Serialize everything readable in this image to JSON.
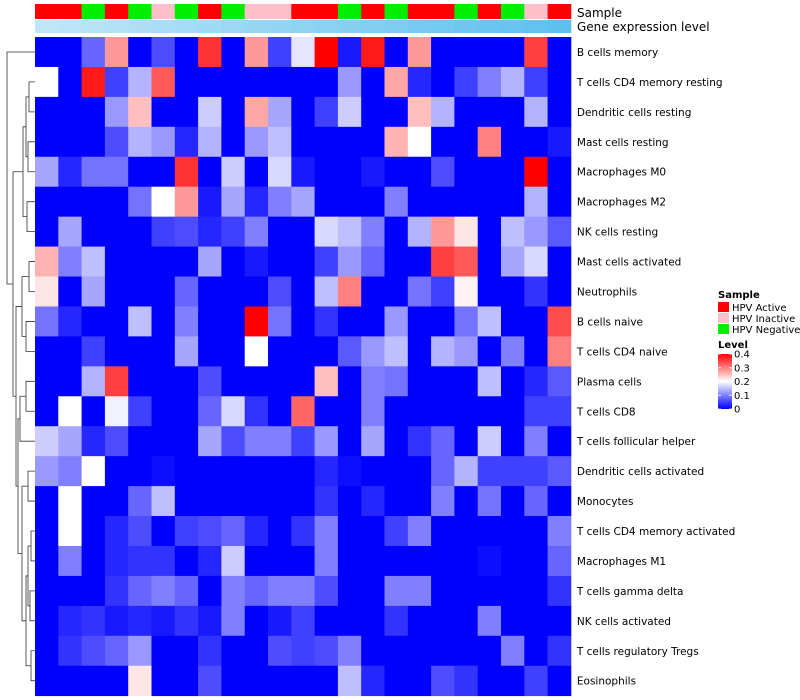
{
  "chart_data": {
    "type": "heatmap",
    "annotations": {
      "sample_label": "Sample",
      "level_label": "Gene expression level"
    },
    "rows": [
      "B cells memory",
      "T cells CD4 memory resting",
      "Dendritic cells resting",
      "Mast cells resting",
      "Macrophages M0",
      "Macrophages M2",
      "NK cells resting",
      "Mast cells activated",
      "Neutrophils",
      "B cells naive",
      "T cells CD4 naive",
      "Plasma cells",
      "T cells CD8",
      "T cells follicular helper",
      "Dendritic cells activated",
      "Monocytes",
      "T cells CD4 memory activated",
      "Macrophages M1",
      "T cells gamma delta",
      "NK cells activated",
      "T cells regulatory  Tregs",
      "Eosinophils"
    ],
    "samples": [
      "HPV Active",
      "HPV Active",
      "HPV Negative",
      "HPV Active",
      "HPV Negative",
      "HPV Inactive",
      "HPV Negative",
      "HPV Active",
      "HPV Negative",
      "HPV Inactive",
      "HPV Inactive",
      "HPV Active",
      "HPV Active",
      "HPV Negative",
      "HPV Active",
      "HPV Negative",
      "HPV Active",
      "HPV Active",
      "HPV Negative",
      "HPV Active",
      "HPV Negative",
      "HPV Inactive",
      "HPV Active"
    ],
    "expression_level": [
      0.0,
      0.05,
      0.09,
      0.14,
      0.18,
      0.23,
      0.27,
      0.32,
      0.36,
      0.41,
      0.45,
      0.5,
      0.55,
      0.59,
      0.64,
      0.68,
      0.73,
      0.77,
      0.82,
      0.86,
      0.91,
      0.95,
      1.0
    ],
    "values": [
      [
        0,
        0,
        0.08,
        0.28,
        0,
        0.06,
        0,
        0.36,
        0,
        0.28,
        0.05,
        0.18,
        0.4,
        0.02,
        0.38,
        0,
        0.28,
        0,
        0,
        0,
        0,
        0.35,
        0
      ],
      [
        0.2,
        0,
        0.38,
        0.05,
        0.14,
        0.33,
        0,
        0,
        0,
        0,
        0,
        0,
        0,
        0.12,
        0,
        0.27,
        0.03,
        0,
        0.05,
        0.1,
        0.14,
        0.05,
        0
      ],
      [
        0,
        0,
        0,
        0.12,
        0.25,
        0,
        0,
        0.16,
        0,
        0.27,
        0.13,
        0,
        0.05,
        0.16,
        0,
        0,
        0.25,
        0.14,
        0,
        0,
        0,
        0.14,
        0
      ],
      [
        0,
        0,
        0,
        0.06,
        0.14,
        0.12,
        0.03,
        0.14,
        0,
        0.12,
        0.15,
        0,
        0,
        0,
        0,
        0.26,
        0.2,
        0,
        0,
        0.3,
        0,
        0,
        0.02
      ],
      [
        0.13,
        0.03,
        0.09,
        0.09,
        0,
        0,
        0.36,
        0,
        0.16,
        0,
        0.17,
        0.02,
        0,
        0,
        0.02,
        0,
        0,
        0.06,
        0,
        0,
        0,
        0.4,
        0
      ],
      [
        0,
        0,
        0,
        0,
        0.09,
        0.2,
        0.28,
        0.02,
        0.13,
        0.03,
        0.1,
        0.13,
        0,
        0,
        0,
        0.1,
        0,
        0,
        0,
        0,
        0,
        0.14,
        0
      ],
      [
        0,
        0.13,
        0,
        0,
        0,
        0.05,
        0.06,
        0.03,
        0.05,
        0.1,
        0,
        0,
        0.17,
        0.15,
        0.1,
        0,
        0.14,
        0.28,
        0.22,
        0,
        0.15,
        0.12,
        0.07
      ],
      [
        0.26,
        0.1,
        0.15,
        0,
        0,
        0,
        0,
        0.13,
        0,
        0.02,
        0,
        0,
        0.05,
        0.12,
        0.08,
        0,
        0,
        0.35,
        0.33,
        0,
        0.13,
        0.17,
        0
      ],
      [
        0.22,
        0,
        0.13,
        0,
        0,
        0,
        0.08,
        0,
        0,
        0,
        0.06,
        0,
        0.15,
        0.3,
        0,
        0,
        0.09,
        0.05,
        0.21,
        0,
        0,
        0.04,
        0
      ],
      [
        0.09,
        0.03,
        0,
        0,
        0.15,
        0,
        0.1,
        0,
        0,
        0.4,
        0.09,
        0,
        0.04,
        0,
        0,
        0.12,
        0,
        0,
        0.09,
        0.15,
        0,
        0,
        0.34
      ],
      [
        0,
        0,
        0.05,
        0,
        0,
        0,
        0.13,
        0,
        0,
        0.2,
        0,
        0,
        0,
        0.07,
        0.12,
        0.15,
        0,
        0.14,
        0.12,
        0,
        0.1,
        0,
        0.3
      ],
      [
        0,
        0,
        0.14,
        0.35,
        0,
        0,
        0,
        0.06,
        0,
        0,
        0,
        0,
        0.25,
        0,
        0.1,
        0.09,
        0,
        0,
        0,
        0.15,
        0,
        0.03,
        0.07
      ],
      [
        0,
        0.2,
        0,
        0.19,
        0.05,
        0,
        0,
        0.08,
        0.17,
        0.04,
        0,
        0.32,
        0,
        0,
        0.1,
        0,
        0,
        0,
        0,
        0,
        0,
        0.05,
        0.05
      ],
      [
        0.16,
        0.13,
        0.03,
        0.06,
        0,
        0,
        0,
        0.13,
        0.06,
        0.1,
        0.1,
        0.05,
        0.12,
        0,
        0.13,
        0,
        0.04,
        0.08,
        0,
        0.16,
        0,
        0.1,
        0
      ],
      [
        0.12,
        0.1,
        0.2,
        0,
        0,
        0.01,
        0,
        0,
        0,
        0,
        0,
        0,
        0.03,
        0.01,
        0,
        0,
        0,
        0.08,
        0.14,
        0.05,
        0.05,
        0.05,
        0.07
      ],
      [
        0,
        0.2,
        0,
        0,
        0.08,
        0.15,
        0,
        0,
        0,
        0,
        0,
        0,
        0.04,
        0,
        0.03,
        0,
        0,
        0.1,
        0,
        0.09,
        0,
        0.08,
        0
      ],
      [
        0,
        0.2,
        0,
        0.03,
        0.06,
        0,
        0.05,
        0.06,
        0.08,
        0.03,
        0,
        0.04,
        0.1,
        0,
        0,
        0.05,
        0.1,
        0,
        0,
        0,
        0,
        0,
        0.1
      ],
      [
        0,
        0.1,
        0,
        0.03,
        0.04,
        0.04,
        0,
        0.03,
        0.16,
        0,
        0,
        0,
        0.1,
        0,
        0,
        0,
        0,
        0,
        0,
        0.01,
        0,
        0,
        0.08
      ],
      [
        0,
        0,
        0,
        0.04,
        0.08,
        0.1,
        0.08,
        0,
        0.1,
        0.08,
        0.1,
        0.1,
        0.06,
        0,
        0,
        0.1,
        0.1,
        0,
        0,
        0,
        0,
        0,
        0.04
      ],
      [
        0,
        0.03,
        0.04,
        0.02,
        0.03,
        0.02,
        0.04,
        0.02,
        0.1,
        0,
        0.02,
        0.05,
        0,
        0,
        0,
        0.04,
        0,
        0,
        0,
        0.1,
        0,
        0,
        0
      ],
      [
        0,
        0.04,
        0.06,
        0.08,
        0.12,
        0,
        0,
        0.04,
        0,
        0,
        0.06,
        0.05,
        0.06,
        0.1,
        0,
        0,
        0,
        0,
        0,
        0,
        0.1,
        0,
        0.04
      ],
      [
        0,
        0,
        0,
        0,
        0.22,
        0,
        0,
        0.06,
        0,
        0,
        0,
        0,
        0,
        0.15,
        0.03,
        0,
        0,
        0.06,
        0.04,
        0,
        0,
        0.05,
        0
      ]
    ],
    "legend": {
      "sample_title": "Sample",
      "sample_entries": [
        {
          "label": "HPV Active",
          "color": "#ff0000"
        },
        {
          "label": "HPV Inactive",
          "color": "#ffc0cb"
        },
        {
          "label": "HPV Negative",
          "color": "#00ee00"
        }
      ],
      "level_title": "Level",
      "level_ticks": [
        "0.4",
        "0.3",
        "0.2",
        "0.1",
        "0"
      ],
      "level_tick_values": [
        0.4,
        0.3,
        0.2,
        0.1,
        0
      ],
      "scale": {
        "min": 0,
        "max": 0.4,
        "low_color": "#0000ff",
        "mid_color": "#ffffff",
        "high_color": "#ff0000"
      },
      "expression_colors": {
        "low": "#bfe6f7",
        "high": "#5ec0ee"
      }
    }
  }
}
